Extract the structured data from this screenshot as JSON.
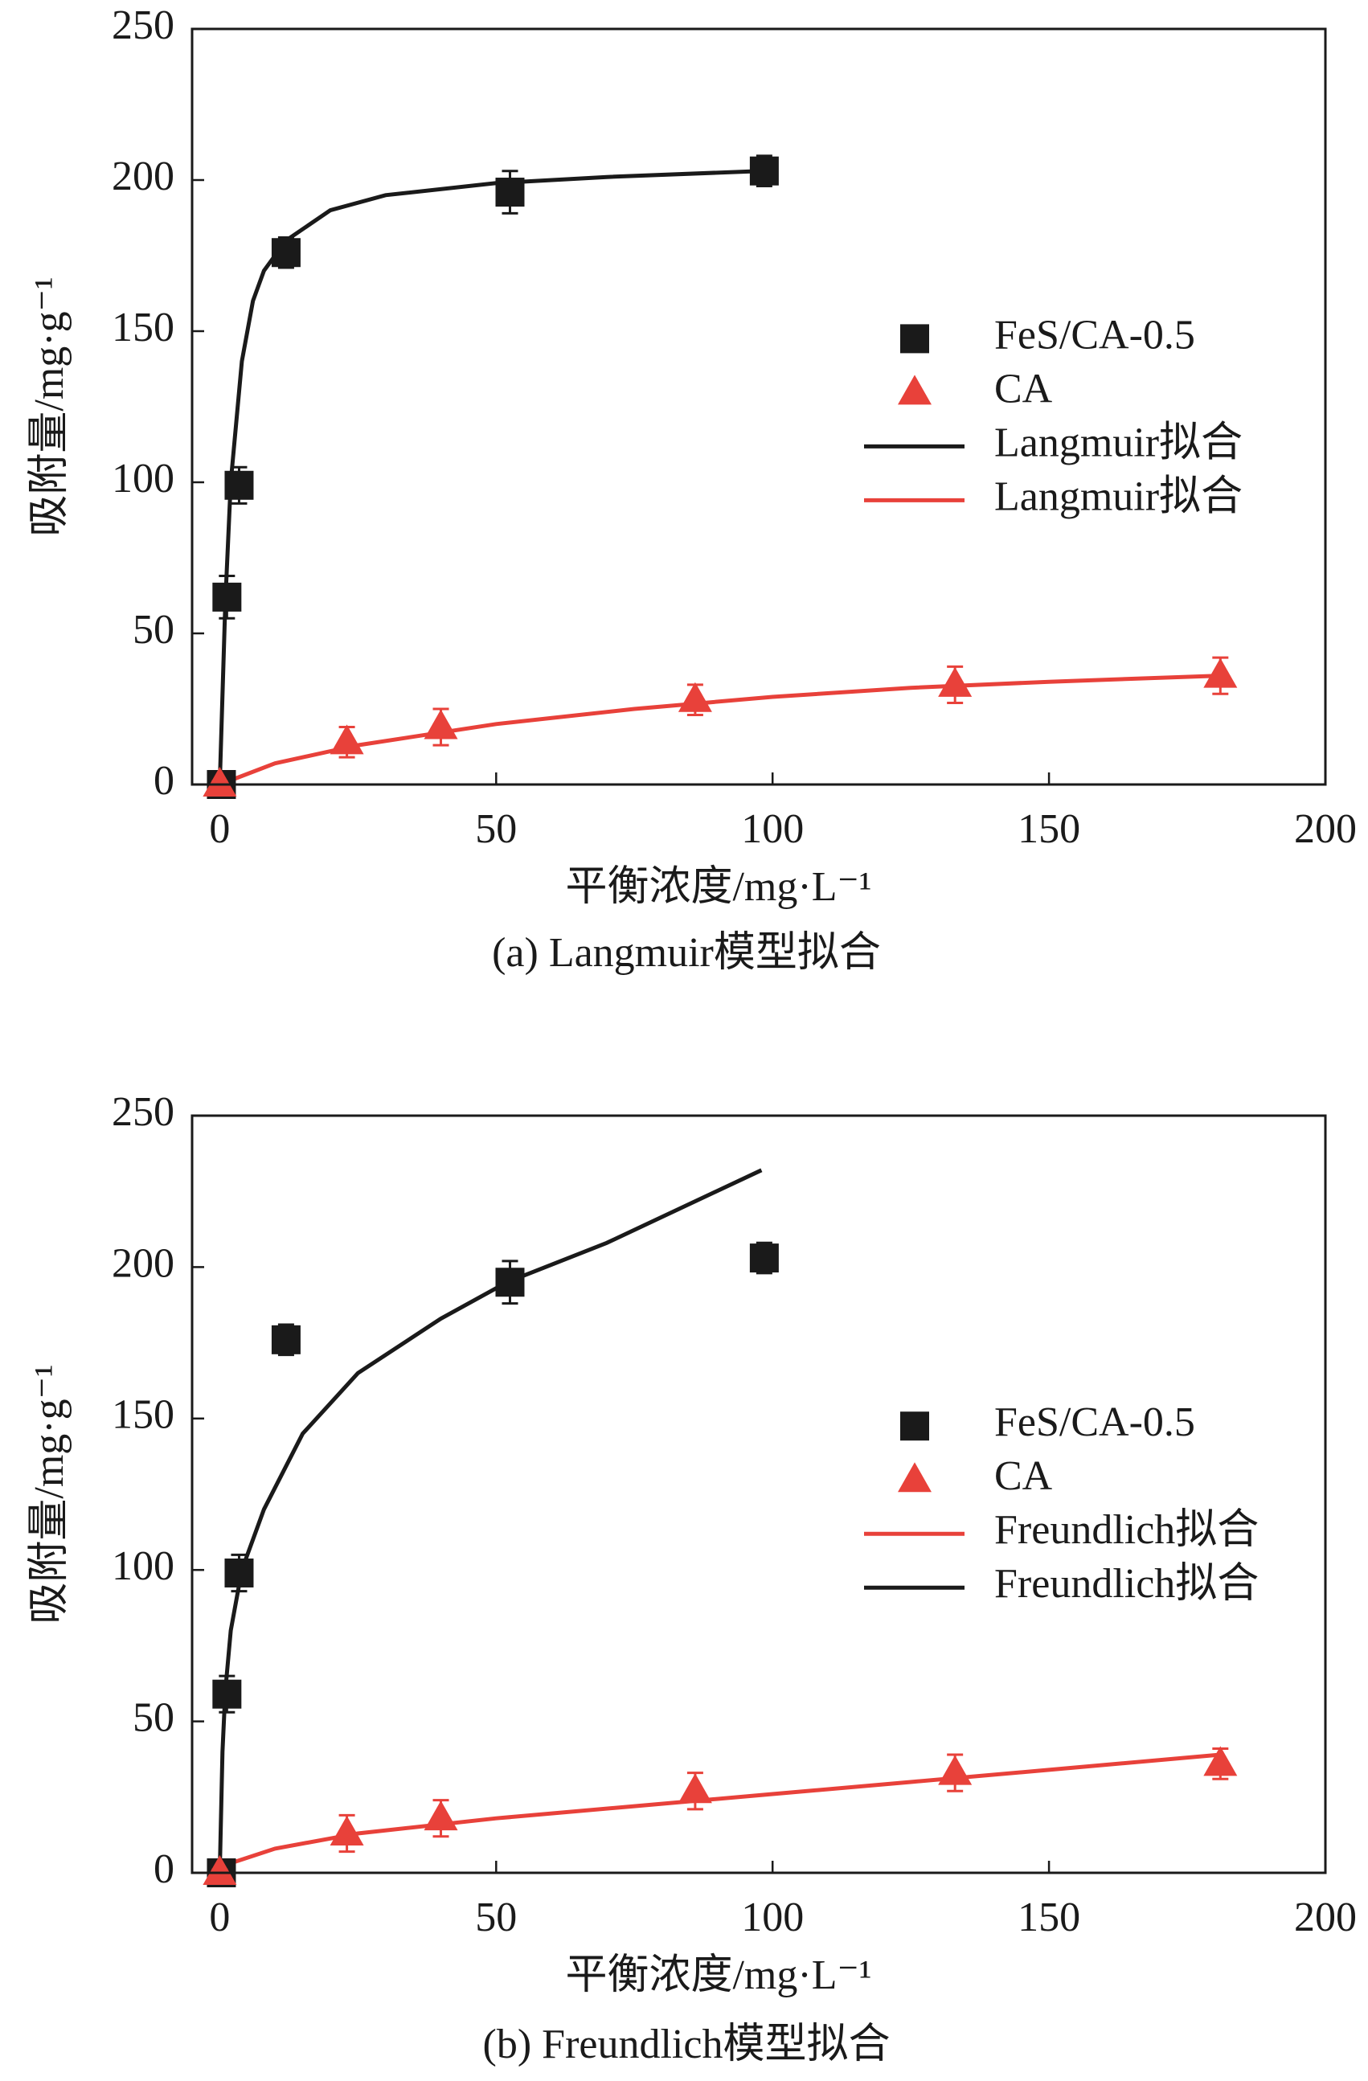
{
  "chart_data": [
    {
      "type": "scatter",
      "caption": "(a) Langmuir模型拟合",
      "xlabel": "平衡浓度/mg·L⁻¹",
      "ylabel": "吸附量/mg·g⁻¹",
      "xlim": [
        -5,
        200
      ],
      "ylim": [
        0,
        250
      ],
      "xticks": [
        0,
        50,
        100,
        150,
        200
      ],
      "yticks": [
        0,
        50,
        100,
        150,
        200,
        250
      ],
      "series": [
        {
          "name": "FeS/CA-0.5",
          "color": "#1a1a1a",
          "mode": "marker",
          "marker": "square",
          "x": [
            0.3,
            1.3,
            3.5,
            12,
            52.5,
            98.5
          ],
          "values": [
            0,
            62,
            99,
            176,
            196,
            203
          ],
          "errors": [
            2,
            7,
            6,
            5,
            7,
            5
          ]
        },
        {
          "name": "CA",
          "color": "#e8413a",
          "mode": "marker",
          "marker": "triangle",
          "x": [
            0,
            23,
            40,
            86,
            133,
            181
          ],
          "values": [
            0,
            14,
            19,
            28,
            33,
            36
          ],
          "errors": [
            1,
            5,
            6,
            5,
            6,
            6
          ]
        },
        {
          "name": "Langmuir拟合",
          "color": "#1a1a1a",
          "mode": "line",
          "x": [
            0,
            1,
            2,
            4,
            6,
            8,
            12,
            20,
            30,
            50,
            70,
            98
          ],
          "values": [
            0,
            60,
            100,
            140,
            160,
            170,
            180,
            190,
            195,
            199,
            201,
            203
          ]
        },
        {
          "name": "Langmuir拟合",
          "color": "#e8413a",
          "mode": "line",
          "x": [
            0,
            10,
            25,
            50,
            75,
            100,
            125,
            150,
            181
          ],
          "values": [
            0,
            7,
            13,
            20,
            25,
            29,
            32,
            34,
            36
          ]
        }
      ]
    },
    {
      "type": "scatter",
      "caption": "(b) Freundlich模型拟合",
      "xlabel": "平衡浓度/mg·L⁻¹",
      "ylabel": "吸附量/mg·g⁻¹",
      "xlim": [
        -5,
        200
      ],
      "ylim": [
        0,
        250
      ],
      "xticks": [
        0,
        50,
        100,
        150,
        200
      ],
      "yticks": [
        0,
        50,
        100,
        150,
        200,
        250
      ],
      "series": [
        {
          "name": "FeS/CA-0.5",
          "color": "#1a1a1a",
          "mode": "marker",
          "marker": "square",
          "x": [
            0.3,
            1.3,
            3.5,
            12,
            52.5,
            98.5
          ],
          "values": [
            0,
            59,
            99,
            176,
            195,
            203
          ],
          "errors": [
            2,
            6,
            6,
            5,
            7,
            5
          ]
        },
        {
          "name": "CA",
          "color": "#e8413a",
          "mode": "marker",
          "marker": "triangle",
          "x": [
            0,
            23,
            40,
            86,
            133,
            181
          ],
          "values": [
            0,
            13,
            18,
            27,
            33,
            36
          ],
          "errors": [
            1,
            6,
            6,
            6,
            6,
            5
          ]
        },
        {
          "name": "Freundlich拟合",
          "color": "#e8413a",
          "mode": "line",
          "x": [
            0,
            10,
            25,
            50,
            75,
            100,
            125,
            150,
            181
          ],
          "values": [
            2,
            8,
            13,
            18,
            22,
            26,
            30,
            34,
            39
          ]
        },
        {
          "name": "Freundlich拟合",
          "color": "#1a1a1a",
          "mode": "line",
          "x": [
            0,
            0.5,
            1,
            2,
            4,
            8,
            15,
            25,
            40,
            52,
            70,
            98
          ],
          "values": [
            0,
            40,
            60,
            80,
            100,
            120,
            145,
            165,
            183,
            195,
            208,
            232
          ]
        }
      ]
    }
  ]
}
